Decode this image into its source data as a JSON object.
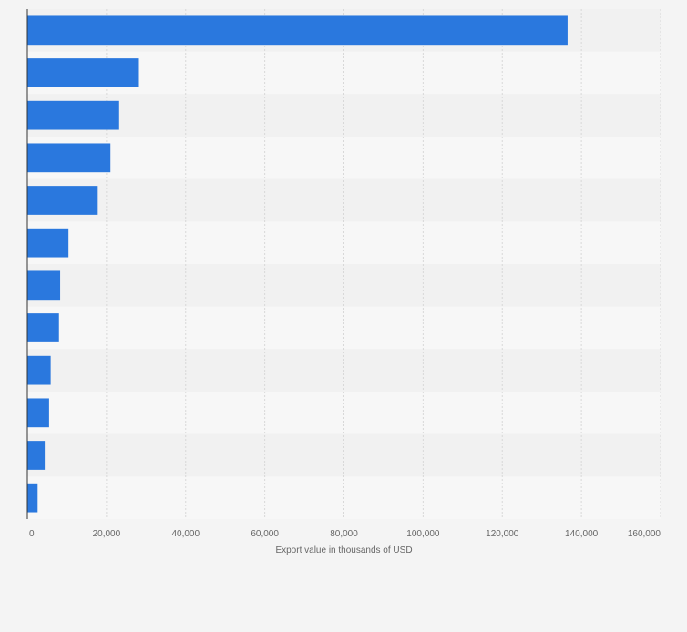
{
  "chart_data": {
    "type": "bar",
    "orientation": "horizontal",
    "categories": [
      "",
      "",
      "",
      "",
      "",
      "",
      "",
      "",
      "",
      "",
      "",
      ""
    ],
    "values": [
      136500,
      28200,
      23200,
      21000,
      17800,
      10400,
      8300,
      8000,
      5900,
      5500,
      4400,
      2600
    ],
    "xlabel": "Export value in thousands of USD",
    "ylabel": "",
    "xlim": [
      0,
      160000
    ],
    "x_ticks": [
      0,
      20000,
      40000,
      60000,
      80000,
      100000,
      120000,
      140000,
      160000
    ],
    "x_tick_labels": [
      "0",
      "20,000",
      "40,000",
      "60,000",
      "80,000",
      "100,000",
      "120,000",
      "140,000",
      "160,000"
    ],
    "grid": true,
    "colors": {
      "bar": "#2a78de",
      "band_light": "#f7f7f7",
      "band_dark": "#f1f1f1",
      "grid": "#d8d8d8",
      "axis": "#333333",
      "text": "#666666",
      "background": "#f4f4f4"
    }
  }
}
